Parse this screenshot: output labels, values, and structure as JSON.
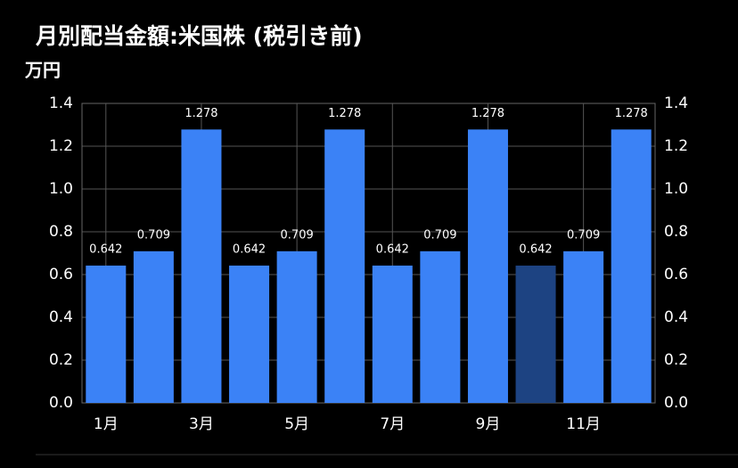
{
  "chart_data": {
    "type": "bar",
    "title": "月別配当金額:米国株 (税引き前)",
    "y_label": "万円",
    "categories": [
      "1月",
      null,
      "3月",
      null,
      "5月",
      null,
      "7月",
      null,
      "9月",
      null,
      "11月",
      null
    ],
    "values": [
      0.642,
      0.709,
      1.278,
      0.642,
      0.709,
      1.278,
      0.642,
      0.709,
      1.278,
      0.642,
      0.709,
      1.278
    ],
    "colors": [
      "#3b82f6",
      "#3b82f6",
      "#3b82f6",
      "#3b82f6",
      "#3b82f6",
      "#3b82f6",
      "#3b82f6",
      "#3b82f6",
      "#3b82f6",
      "#1d4382",
      "#3b82f6",
      "#3b82f6"
    ],
    "ylim": [
      0,
      1.4
    ],
    "yticks": [
      {
        "value": 0,
        "label": "0.0"
      },
      0.2,
      0.4,
      0.6,
      0.8,
      {
        "value": 1,
        "label": "1.0"
      },
      1.2,
      1.4
    ],
    "y2lim": [
      0,
      1.4
    ],
    "y2ticks": [
      {
        "value": 0,
        "label": "0.0"
      },
      0.2,
      0.4,
      0.6,
      0.8,
      {
        "value": 1,
        "label": "1.0"
      },
      1.2,
      1.4
    ],
    "grid": true
  }
}
